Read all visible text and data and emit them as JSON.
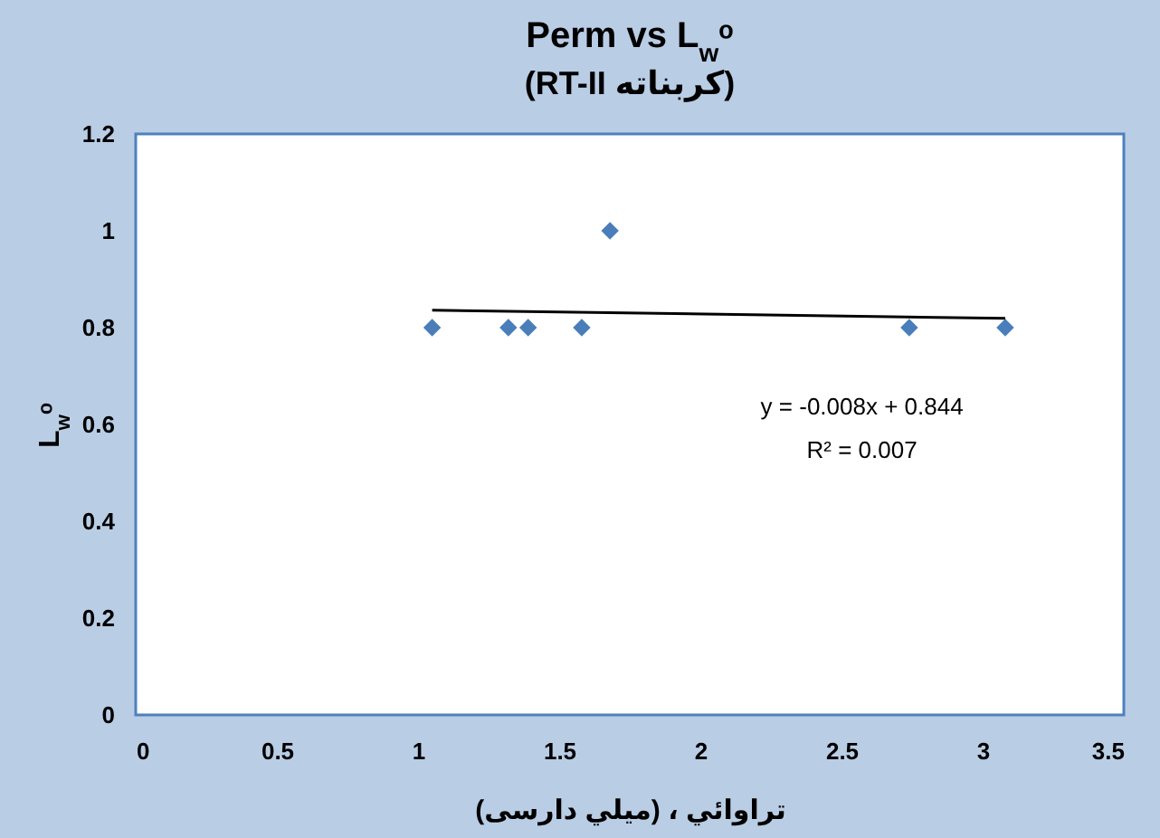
{
  "chart_data": {
    "type": "scatter",
    "title": "Perm vs L$_{w}$ᵒ",
    "subtitle": "(کربناته RT-II)",
    "xlabel": "تراوائي ، (ميلي دارسی)",
    "ylabel": "L$_{w}$ᵒ",
    "xlim": [
      0,
      3.5
    ],
    "xticks": [
      0,
      0.5,
      1,
      1.5,
      2,
      2.5,
      3,
      3.5
    ],
    "ylim": [
      0,
      1.2
    ],
    "yticks": [
      0,
      0.2,
      0.4,
      0.6,
      0.8,
      1,
      1.2
    ],
    "grid": false,
    "marker": "diamond",
    "series": [
      {
        "color": "#4a7ebb",
        "x": [
          1.05,
          1.32,
          1.39,
          1.58,
          1.68,
          2.74,
          3.08
        ],
        "values": [
          0.8,
          0.8,
          0.8,
          0.8,
          1.0,
          0.8,
          0.8
        ]
      },
      {
        "type": "line",
        "marker": "none",
        "color": "#000000",
        "x": [
          1.05,
          3.08
        ],
        "values": [
          0.836,
          0.819
        ]
      }
    ],
    "annotations": [
      "y = -0.008x + 0.844",
      "R² = 0.007"
    ]
  }
}
